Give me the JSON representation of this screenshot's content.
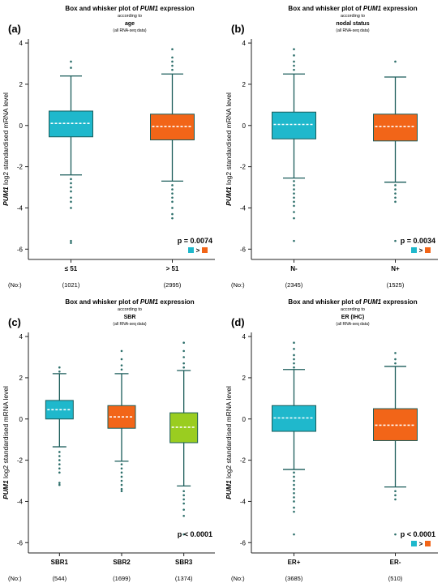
{
  "chart_data": [
    {
      "type": "box",
      "panel_label": "(a)",
      "title": "Box and whisker plot of PUM1 expression",
      "title_gene": "PUM1",
      "subtitle": "according to",
      "variable": "age",
      "note": "(all RNA-seq data)",
      "ylabel_gene": "PUM1",
      "ylabel": "log2 standardised mRNA level",
      "ylim": [
        -6.5,
        4.2
      ],
      "yticks": [
        -6,
        -4,
        -2,
        0,
        2,
        4
      ],
      "n_label": "(No:)",
      "p_value": "p = 0.0074",
      "comparison": ">",
      "categories": [
        "≤ 51",
        "> 51"
      ],
      "counts": [
        "(1021)",
        "(2995)"
      ],
      "series": [
        {
          "color": "#1FB8CC",
          "median": 0.1,
          "q1": -0.55,
          "q3": 0.7,
          "whisker_low": -2.4,
          "whisker_high": 2.4,
          "outliers": [
            3.1,
            2.8,
            -2.6,
            -2.8,
            -3.0,
            -3.2,
            -3.5,
            -3.7,
            -4.0,
            -5.6,
            -5.7
          ]
        },
        {
          "color": "#F26518",
          "median": -0.05,
          "q1": -0.7,
          "q3": 0.55,
          "whisker_low": -2.7,
          "whisker_high": 2.5,
          "outliers": [
            3.7,
            3.3,
            3.1,
            2.9,
            2.7,
            -2.9,
            -3.1,
            -3.3,
            -3.5,
            -3.7,
            -4.0,
            -4.3,
            -4.5
          ]
        }
      ]
    },
    {
      "type": "box",
      "panel_label": "(b)",
      "title": "Box and whisker plot of PUM1 expression",
      "title_gene": "PUM1",
      "subtitle": "according to",
      "variable": "nodal status",
      "note": "(all RNA-seq data)",
      "ylabel_gene": "PUM1",
      "ylabel": "log2 standardised mRNA level",
      "ylim": [
        -6.5,
        4.2
      ],
      "yticks": [
        -6,
        -4,
        -2,
        0,
        2,
        4
      ],
      "n_label": "(No:)",
      "p_value": "p = 0.0034",
      "comparison": ">",
      "categories": [
        "N-",
        "N+"
      ],
      "counts": [
        "(2345)",
        "(1525)"
      ],
      "series": [
        {
          "color": "#1FB8CC",
          "median": 0.05,
          "q1": -0.65,
          "q3": 0.65,
          "whisker_low": -2.55,
          "whisker_high": 2.5,
          "outliers": [
            3.7,
            3.4,
            3.1,
            2.9,
            2.7,
            -2.7,
            -2.9,
            -3.1,
            -3.3,
            -3.5,
            -3.7,
            -3.9,
            -4.2,
            -4.5,
            -5.6
          ]
        },
        {
          "color": "#F26518",
          "median": -0.05,
          "q1": -0.75,
          "q3": 0.55,
          "whisker_low": -2.75,
          "whisker_high": 2.35,
          "outliers": [
            3.1,
            -2.9,
            -3.1,
            -3.3,
            -3.5,
            -3.7,
            -5.6
          ]
        }
      ]
    },
    {
      "type": "box",
      "panel_label": "(c)",
      "title": "Box and whisker plot of PUM1 expression",
      "title_gene": "PUM1",
      "subtitle": "according to",
      "variable": "SBR",
      "note": "(all RNA-seq data)",
      "ylabel_gene": "PUM1",
      "ylabel": "log2 standardised mRNA level",
      "ylim": [
        -6.5,
        4.2
      ],
      "yticks": [
        -6,
        -4,
        -2,
        0,
        2,
        4
      ],
      "n_label": "(No:)",
      "p_value": "p < 0.0001",
      "comparison": "",
      "categories": [
        "SBR1",
        "SBR2",
        "SBR3"
      ],
      "counts": [
        "(544)",
        "(1699)",
        "(1374)"
      ],
      "series": [
        {
          "color": "#1FB8CC",
          "median": 0.45,
          "q1": 0.0,
          "q3": 0.9,
          "whisker_low": -1.35,
          "whisker_high": 2.2,
          "outliers": [
            2.5,
            2.3,
            -1.6,
            -1.8,
            -2.0,
            -2.2,
            -2.4,
            -2.6,
            -3.1,
            -3.2
          ]
        },
        {
          "color": "#F26518",
          "median": 0.1,
          "q1": -0.45,
          "q3": 0.65,
          "whisker_low": -2.05,
          "whisker_high": 2.2,
          "outliers": [
            3.3,
            2.9,
            2.6,
            2.4,
            -2.2,
            -2.4,
            -2.6,
            -2.8,
            -3.0,
            -3.2,
            -3.4,
            -3.5
          ]
        },
        {
          "color": "#9ACD20",
          "median": -0.4,
          "q1": -1.15,
          "q3": 0.3,
          "whisker_low": -3.25,
          "whisker_high": 2.35,
          "outliers": [
            3.7,
            3.3,
            3.0,
            2.7,
            2.5,
            -3.5,
            -3.7,
            -3.9,
            -4.1,
            -4.4,
            -4.7,
            -5.6
          ]
        }
      ]
    },
    {
      "type": "box",
      "panel_label": "(d)",
      "title": "Box and whisker plot of PUM1 expression",
      "title_gene": "PUM1",
      "subtitle": "according to",
      "variable": "ER (IHC)",
      "note": "(all RNA-seq data)",
      "ylabel_gene": "PUM1",
      "ylabel": "log2 standardised mRNA level",
      "ylim": [
        -6.5,
        4.2
      ],
      "yticks": [
        -6,
        -4,
        -2,
        0,
        2,
        4
      ],
      "n_label": "(No:)",
      "p_value": "p < 0.0001",
      "comparison": ">",
      "categories": [
        "ER+",
        "ER-"
      ],
      "counts": [
        "(3685)",
        "(510)"
      ],
      "series": [
        {
          "color": "#1FB8CC",
          "median": 0.05,
          "q1": -0.6,
          "q3": 0.65,
          "whisker_low": -2.45,
          "whisker_high": 2.4,
          "outliers": [
            3.7,
            3.4,
            3.1,
            2.9,
            2.7,
            2.5,
            -2.6,
            -2.8,
            -3.0,
            -3.2,
            -3.4,
            -3.6,
            -3.8,
            -4.0,
            -4.3,
            -4.5,
            -5.6
          ]
        },
        {
          "color": "#F26518",
          "median": -0.3,
          "q1": -1.05,
          "q3": 0.5,
          "whisker_low": -3.3,
          "whisker_high": 2.55,
          "outliers": [
            3.2,
            2.9,
            2.7,
            -3.5,
            -3.7,
            -3.9,
            -5.6
          ]
        }
      ]
    }
  ]
}
